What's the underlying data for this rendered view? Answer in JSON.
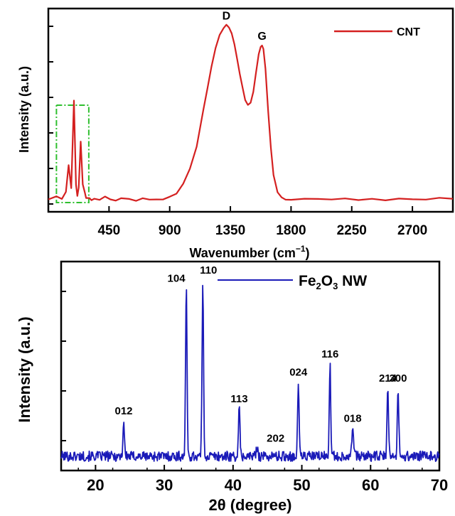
{
  "chart_data": [
    {
      "type": "line",
      "id": "raman",
      "xlabel": "Wavenumber (cm⁻¹)",
      "xlabel_base": "Wavenumber (cm",
      "xlabel_sup": "−1",
      "xlabel_close": ")",
      "ylabel": "Intensity (a.u.)",
      "xlim": [
        0,
        3000
      ],
      "ylim": [
        0,
        1
      ],
      "xticks": [
        450,
        900,
        1350,
        1800,
        2250,
        2700
      ],
      "xtick_labels": [
        "450",
        "900",
        "1350",
        "1800",
        "2250",
        "2700"
      ],
      "legend": {
        "position": "top-right",
        "entries": [
          {
            "label": "CNT",
            "color": "#d42020"
          }
        ]
      },
      "series": [
        {
          "label": "CNT",
          "color": "#d42020",
          "x": [
            0,
            60,
            100,
            130,
            150,
            170,
            190,
            205,
            215,
            225,
            240,
            255,
            270,
            280,
            290,
            305,
            320,
            340,
            380,
            420,
            460,
            500,
            540,
            600,
            650,
            700,
            750,
            800,
            850,
            900,
            950,
            1000,
            1050,
            1100,
            1150,
            1180,
            1210,
            1240,
            1270,
            1300,
            1320,
            1340,
            1360,
            1380,
            1400,
            1420,
            1440,
            1460,
            1480,
            1500,
            1520,
            1540,
            1560,
            1575,
            1585,
            1595,
            1610,
            1630,
            1650,
            1670,
            1700,
            1730,
            1760,
            1800,
            1900,
            2000,
            2100,
            2200,
            2300,
            2400,
            2500,
            2600,
            2700,
            2800,
            2900,
            3000
          ],
          "y": [
            0.02,
            0.03,
            0.02,
            0.06,
            0.2,
            0.08,
            0.55,
            0.1,
            0.04,
            0.08,
            0.33,
            0.1,
            0.06,
            0.03,
            0.02,
            0.025,
            0.015,
            0.02,
            0.015,
            0.03,
            0.02,
            0.015,
            0.02,
            0.02,
            0.015,
            0.02,
            0.02,
            0.015,
            0.02,
            0.03,
            0.05,
            0.1,
            0.18,
            0.3,
            0.5,
            0.62,
            0.74,
            0.84,
            0.91,
            0.95,
            0.96,
            0.95,
            0.92,
            0.86,
            0.78,
            0.7,
            0.62,
            0.56,
            0.53,
            0.54,
            0.6,
            0.7,
            0.8,
            0.84,
            0.85,
            0.83,
            0.72,
            0.5,
            0.3,
            0.15,
            0.06,
            0.03,
            0.02,
            0.02,
            0.015,
            0.02,
            0.015,
            0.02,
            0.015,
            0.02,
            0.015,
            0.02,
            0.02,
            0.015,
            0.02,
            0.02
          ]
        }
      ],
      "annotations": [
        {
          "text": "D",
          "x": 1320,
          "y": 0.96
        },
        {
          "text": "G",
          "x": 1585,
          "y": 0.85
        }
      ],
      "highlight_box": {
        "x_range": [
          60,
          300
        ],
        "color": "#2fbf2f",
        "style": "dash-dot"
      }
    },
    {
      "type": "line",
      "id": "xrd",
      "xlabel": "2θ (degree)",
      "ylabel": "Intensity (a.u.)",
      "xlim": [
        15,
        70
      ],
      "ylim": [
        0,
        1
      ],
      "xticks": [
        20,
        30,
        40,
        50,
        60,
        70
      ],
      "xtick_labels": [
        "20",
        "30",
        "40",
        "50",
        "60",
        "70"
      ],
      "legend": {
        "position": "top-right",
        "entries": [
          {
            "label": "Fe₂O₃ NW",
            "label_parts": [
              "Fe",
              "2",
              "O",
              "3",
              " NW"
            ],
            "color": "#1a1ab8"
          }
        ]
      },
      "series": [
        {
          "label": "Fe₂O₃ NW",
          "color": "#1a1ab8",
          "baseline": 0.07,
          "peaks": [
            {
              "label": "012",
              "x": 24.1,
              "height": 0.17,
              "width": 0.25
            },
            {
              "label": "104",
              "x": 33.2,
              "height": 0.82,
              "width": 0.25
            },
            {
              "label": "110",
              "x": 35.6,
              "height": 0.86,
              "width": 0.25
            },
            {
              "label": "113",
              "x": 40.9,
              "height": 0.23,
              "width": 0.25
            },
            {
              "label": "202",
              "x": 43.5,
              "height": 0.05,
              "width": 0.25
            },
            {
              "label": "024",
              "x": 49.5,
              "height": 0.36,
              "width": 0.25
            },
            {
              "label": "116",
              "x": 54.1,
              "height": 0.45,
              "width": 0.25
            },
            {
              "label": "018",
              "x": 57.4,
              "height": 0.14,
              "width": 0.35
            },
            {
              "label": "214",
              "x": 62.5,
              "height": 0.33,
              "width": 0.25
            },
            {
              "label": "300",
              "x": 64.0,
              "height": 0.33,
              "width": 0.25
            }
          ]
        }
      ]
    }
  ]
}
